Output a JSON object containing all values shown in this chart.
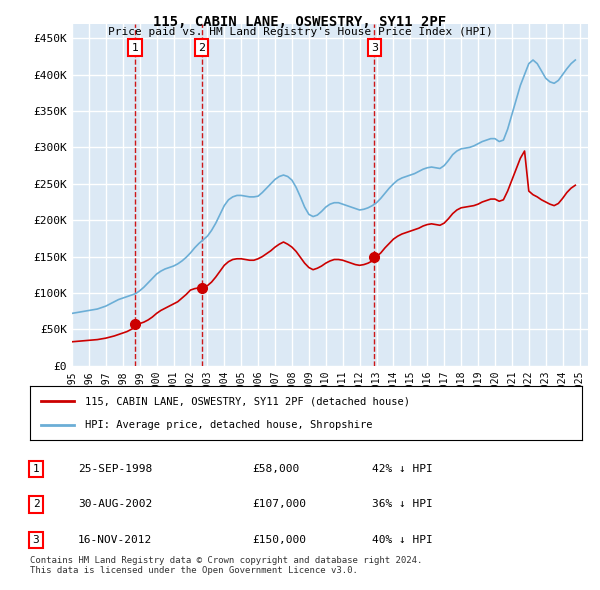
{
  "title": "115, CABIN LANE, OSWESTRY, SY11 2PF",
  "subtitle": "Price paid vs. HM Land Registry's House Price Index (HPI)",
  "ylabel_ticks": [
    "£0",
    "£50K",
    "£100K",
    "£150K",
    "£200K",
    "£250K",
    "£300K",
    "£350K",
    "£400K",
    "£450K"
  ],
  "ytick_values": [
    0,
    50000,
    100000,
    150000,
    200000,
    250000,
    300000,
    350000,
    400000,
    450000
  ],
  "ylim": [
    0,
    470000
  ],
  "xlim_start": 1995.0,
  "xlim_end": 2025.5,
  "background_color": "#dce9f5",
  "plot_bg_color": "#dce9f5",
  "grid_color": "#ffffff",
  "hpi_color": "#6baed6",
  "price_color": "#cc0000",
  "dashed_line_color": "#cc0000",
  "marker_color": "#cc0000",
  "purchase_dates": [
    1998.73,
    2002.66,
    2012.88
  ],
  "purchase_prices": [
    58000,
    107000,
    150000
  ],
  "purchase_labels": [
    "1",
    "2",
    "3"
  ],
  "legend_label_red": "115, CABIN LANE, OSWESTRY, SY11 2PF (detached house)",
  "legend_label_blue": "HPI: Average price, detached house, Shropshire",
  "table_data": [
    [
      "1",
      "25-SEP-1998",
      "£58,000",
      "42% ↓ HPI"
    ],
    [
      "2",
      "30-AUG-2002",
      "£107,000",
      "36% ↓ HPI"
    ],
    [
      "3",
      "16-NOV-2012",
      "£150,000",
      "40% ↓ HPI"
    ]
  ],
  "footnote": "Contains HM Land Registry data © Crown copyright and database right 2024.\nThis data is licensed under the Open Government Licence v3.0.",
  "hpi_x": [
    1995.0,
    1995.25,
    1995.5,
    1995.75,
    1996.0,
    1996.25,
    1996.5,
    1996.75,
    1997.0,
    1997.25,
    1997.5,
    1997.75,
    1998.0,
    1998.25,
    1998.5,
    1998.75,
    1999.0,
    1999.25,
    1999.5,
    1999.75,
    2000.0,
    2000.25,
    2000.5,
    2000.75,
    2001.0,
    2001.25,
    2001.5,
    2001.75,
    2002.0,
    2002.25,
    2002.5,
    2002.75,
    2003.0,
    2003.25,
    2003.5,
    2003.75,
    2004.0,
    2004.25,
    2004.5,
    2004.75,
    2005.0,
    2005.25,
    2005.5,
    2005.75,
    2006.0,
    2006.25,
    2006.5,
    2006.75,
    2007.0,
    2007.25,
    2007.5,
    2007.75,
    2008.0,
    2008.25,
    2008.5,
    2008.75,
    2009.0,
    2009.25,
    2009.5,
    2009.75,
    2010.0,
    2010.25,
    2010.5,
    2010.75,
    2011.0,
    2011.25,
    2011.5,
    2011.75,
    2012.0,
    2012.25,
    2012.5,
    2012.75,
    2013.0,
    2013.25,
    2013.5,
    2013.75,
    2014.0,
    2014.25,
    2014.5,
    2014.75,
    2015.0,
    2015.25,
    2015.5,
    2015.75,
    2016.0,
    2016.25,
    2016.5,
    2016.75,
    2017.0,
    2017.25,
    2017.5,
    2017.75,
    2018.0,
    2018.25,
    2018.5,
    2018.75,
    2019.0,
    2019.25,
    2019.5,
    2019.75,
    2020.0,
    2020.25,
    2020.5,
    2020.75,
    2021.0,
    2021.25,
    2021.5,
    2021.75,
    2022.0,
    2022.25,
    2022.5,
    2022.75,
    2023.0,
    2023.25,
    2023.5,
    2023.75,
    2024.0,
    2024.25,
    2024.5,
    2024.75
  ],
  "hpi_y": [
    72000,
    73000,
    74000,
    75000,
    76000,
    77000,
    78000,
    80000,
    82000,
    85000,
    88000,
    91000,
    93000,
    95000,
    97000,
    99000,
    103000,
    108000,
    114000,
    120000,
    126000,
    130000,
    133000,
    135000,
    137000,
    140000,
    144000,
    149000,
    155000,
    162000,
    168000,
    173000,
    178000,
    186000,
    196000,
    208000,
    220000,
    228000,
    232000,
    234000,
    234000,
    233000,
    232000,
    232000,
    233000,
    238000,
    244000,
    250000,
    256000,
    260000,
    262000,
    260000,
    255000,
    245000,
    232000,
    218000,
    208000,
    205000,
    207000,
    212000,
    218000,
    222000,
    224000,
    224000,
    222000,
    220000,
    218000,
    216000,
    214000,
    215000,
    217000,
    220000,
    224000,
    230000,
    237000,
    244000,
    250000,
    255000,
    258000,
    260000,
    262000,
    264000,
    267000,
    270000,
    272000,
    273000,
    272000,
    271000,
    275000,
    282000,
    290000,
    295000,
    298000,
    299000,
    300000,
    302000,
    305000,
    308000,
    310000,
    312000,
    312000,
    308000,
    310000,
    325000,
    345000,
    365000,
    385000,
    400000,
    415000,
    420000,
    415000,
    405000,
    395000,
    390000,
    388000,
    392000,
    400000,
    408000,
    415000,
    420000
  ],
  "price_x": [
    1995.0,
    1995.25,
    1995.5,
    1995.75,
    1996.0,
    1996.25,
    1996.5,
    1996.75,
    1997.0,
    1997.25,
    1997.5,
    1997.75,
    1998.0,
    1998.25,
    1998.5,
    1998.75,
    1999.0,
    1999.25,
    1999.5,
    1999.75,
    2000.0,
    2000.25,
    2000.5,
    2000.75,
    2001.0,
    2001.25,
    2001.5,
    2001.75,
    2002.0,
    2002.25,
    2002.5,
    2002.75,
    2003.0,
    2003.25,
    2003.5,
    2003.75,
    2004.0,
    2004.25,
    2004.5,
    2004.75,
    2005.0,
    2005.25,
    2005.5,
    2005.75,
    2006.0,
    2006.25,
    2006.5,
    2006.75,
    2007.0,
    2007.25,
    2007.5,
    2007.75,
    2008.0,
    2008.25,
    2008.5,
    2008.75,
    2009.0,
    2009.25,
    2009.5,
    2009.75,
    2010.0,
    2010.25,
    2010.5,
    2010.75,
    2011.0,
    2011.25,
    2011.5,
    2011.75,
    2012.0,
    2012.25,
    2012.5,
    2012.75,
    2013.0,
    2013.25,
    2013.5,
    2013.75,
    2014.0,
    2014.25,
    2014.5,
    2014.75,
    2015.0,
    2015.25,
    2015.5,
    2015.75,
    2016.0,
    2016.25,
    2016.5,
    2016.75,
    2017.0,
    2017.25,
    2017.5,
    2017.75,
    2018.0,
    2018.25,
    2018.5,
    2018.75,
    2019.0,
    2019.25,
    2019.5,
    2019.75,
    2020.0,
    2020.25,
    2020.5,
    2020.75,
    2021.0,
    2021.25,
    2021.5,
    2021.75,
    2022.0,
    2022.25,
    2022.5,
    2022.75,
    2023.0,
    2023.25,
    2023.5,
    2023.75,
    2024.0,
    2024.25,
    2024.5,
    2024.75
  ],
  "price_y": [
    33000,
    33500,
    34000,
    34500,
    35000,
    35500,
    36000,
    37000,
    38000,
    39500,
    41000,
    43000,
    45000,
    47000,
    50000,
    53000,
    58000,
    60000,
    63000,
    67000,
    72000,
    76000,
    79000,
    82000,
    85000,
    88000,
    93000,
    98000,
    104000,
    106000,
    107000,
    107000,
    110000,
    115000,
    122000,
    130000,
    138000,
    143000,
    146000,
    147000,
    147000,
    146000,
    145000,
    145000,
    147000,
    150000,
    154000,
    158000,
    163000,
    167000,
    170000,
    167000,
    163000,
    157000,
    149000,
    141000,
    135000,
    132000,
    134000,
    137000,
    141000,
    144000,
    146000,
    146000,
    145000,
    143000,
    141000,
    139000,
    138000,
    139000,
    141000,
    144000,
    150000,
    155000,
    162000,
    168000,
    174000,
    178000,
    181000,
    183000,
    185000,
    187000,
    189000,
    192000,
    194000,
    195000,
    194000,
    193000,
    196000,
    202000,
    209000,
    214000,
    217000,
    218000,
    219000,
    220000,
    222000,
    225000,
    227000,
    229000,
    229000,
    226000,
    228000,
    240000,
    255000,
    270000,
    285000,
    295000,
    240000,
    235000,
    232000,
    228000,
    225000,
    222000,
    220000,
    223000,
    230000,
    238000,
    244000,
    248000
  ]
}
